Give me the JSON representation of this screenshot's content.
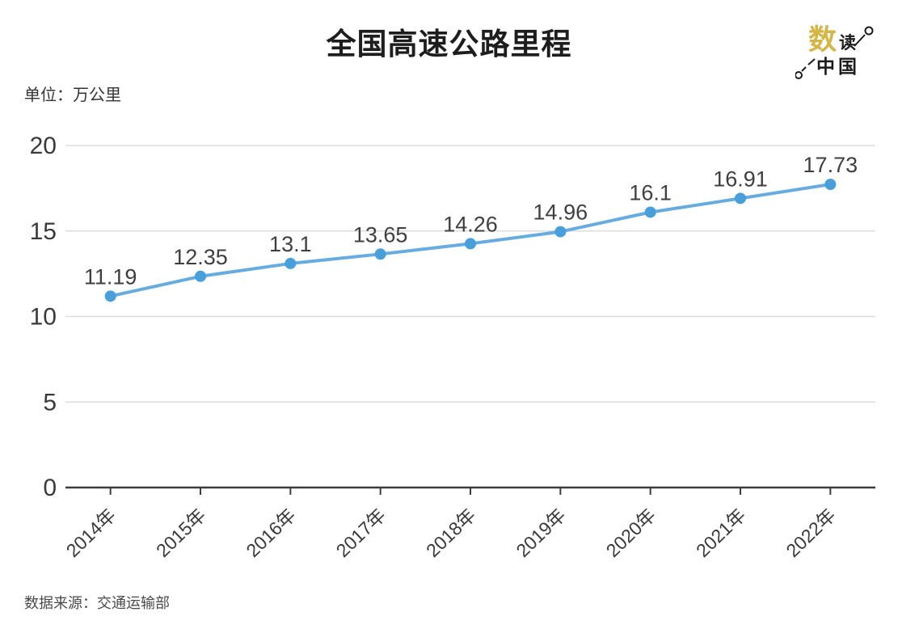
{
  "header": {
    "title": "全国高速公路里程",
    "unit_label": "单位：万公里"
  },
  "logo": {
    "main_char": "数",
    "sub_char": "读",
    "bottom_text": "中国",
    "gold_color": "#d4b545",
    "ink_color": "#1a1a1a"
  },
  "footer": {
    "source": "数据来源：交通运输部"
  },
  "chart_data": {
    "type": "line",
    "title": "全国高速公路里程",
    "ylabel": "万公里",
    "categories": [
      "2014年",
      "2015年",
      "2016年",
      "2017年",
      "2018年",
      "2019年",
      "2020年",
      "2021年",
      "2022年"
    ],
    "values": [
      11.19,
      12.35,
      13.1,
      13.65,
      14.26,
      14.96,
      16.1,
      16.91,
      17.73
    ],
    "ylim": [
      0,
      20
    ],
    "yticks": [
      0,
      5,
      10,
      15,
      20
    ],
    "grid": true,
    "legend": "none",
    "colors": {
      "line": "#66ace0",
      "marker": "#479fdb",
      "gridline": "#dddddd",
      "axis": "#3d3d3d",
      "tick_label": "#3a3a3a",
      "data_label": "#3f3f3f"
    }
  }
}
